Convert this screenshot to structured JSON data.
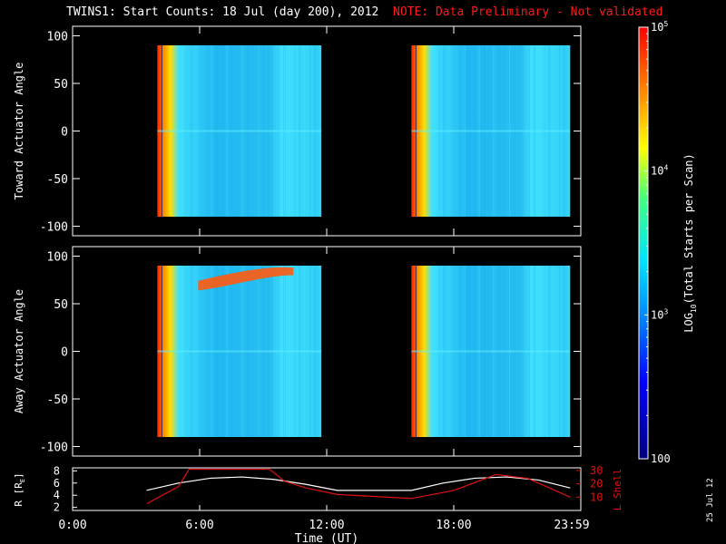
{
  "title": "TWINS1: Start Counts: 18 Jul (day 200), 2012",
  "note": "NOTE: Data Preliminary - Not validated",
  "date_stamp": "25 Jul 12",
  "colors": {
    "note": "#ff1a1a",
    "ephemeris_r": "#ffffff",
    "ephemeris_l": "#e01010",
    "colorbar_scale": [
      "#000080",
      "#0000ff",
      "#0088ff",
      "#00e5ff",
      "#40ff80",
      "#ffff00",
      "#ff8000",
      "#ff0000"
    ]
  },
  "chart_data": [
    {
      "type": "heatmap",
      "panel": "toward",
      "ylabel": "Toward Actuator Angle",
      "ylim": [
        -110,
        110
      ],
      "yticks": [
        "100",
        "50",
        "0",
        "-50",
        "-100"
      ],
      "xlim_hours": [
        0,
        24
      ],
      "segments": [
        {
          "start": "4:00",
          "end": "11:45"
        },
        {
          "start": "16:00",
          "end": "23:30"
        }
      ],
      "angle_range": [
        -90,
        90
      ]
    },
    {
      "type": "heatmap",
      "panel": "away",
      "ylabel": "Away Actuator Angle",
      "ylim": [
        -110,
        110
      ],
      "yticks": [
        "100",
        "50",
        "0",
        "-50",
        "-100"
      ],
      "xlim_hours": [
        0,
        24
      ],
      "segments": [
        {
          "start": "4:00",
          "end": "11:45"
        },
        {
          "start": "16:00",
          "end": "23:30"
        }
      ],
      "angle_range": [
        -90,
        90
      ]
    },
    {
      "type": "line",
      "panel": "ephemeris",
      "xlabel": "Time (UT)",
      "xticks": [
        "0:00",
        "6:00",
        "12:00",
        "18:00",
        "23:59"
      ],
      "ylabel_left": "R [R",
      "ylabel_left_sub": "E",
      "ylabel_left_end": "]",
      "yticks_left": [
        "8",
        "6",
        "4",
        "2"
      ],
      "ylim_left": [
        1.5,
        8.5
      ],
      "ylabel_right": "L Shell",
      "yticks_right": [
        "30",
        "20",
        "10"
      ],
      "ylim_right": [
        0,
        32
      ],
      "series": [
        {
          "name": "R [RE]",
          "axis": "left",
          "x": [
            3.5,
            5.0,
            6.5,
            8.0,
            9.5,
            11.0,
            12.5,
            14.5,
            16.0,
            17.5,
            19.0,
            20.5,
            22.0,
            23.5
          ],
          "y": [
            4.8,
            6.0,
            6.8,
            7.0,
            6.6,
            5.8,
            4.8,
            4.8,
            4.8,
            6.0,
            6.8,
            7.0,
            6.5,
            5.2
          ]
        },
        {
          "name": "L Shell",
          "axis": "right",
          "x": [
            3.5,
            5.0,
            5.5,
            9.3,
            10.0,
            11.0,
            12.5,
            16.0,
            18.0,
            20.0,
            21.5,
            23.5
          ],
          "y": [
            5,
            18,
            31,
            31,
            22,
            17,
            12,
            9,
            15,
            27,
            24,
            10
          ]
        }
      ]
    }
  ],
  "colorbar": {
    "label": "LOG",
    "label_sub": "10",
    "label_rest": "(Total Starts per Scan)",
    "range": [
      100,
      100000
    ],
    "tick_labels": [
      {
        "value": 100,
        "text": "100"
      },
      {
        "value": 1000,
        "text": "10",
        "sup": "3"
      },
      {
        "value": 10000,
        "text": "10",
        "sup": "4"
      },
      {
        "value": 100000,
        "text": "10",
        "sup": "5"
      }
    ]
  }
}
